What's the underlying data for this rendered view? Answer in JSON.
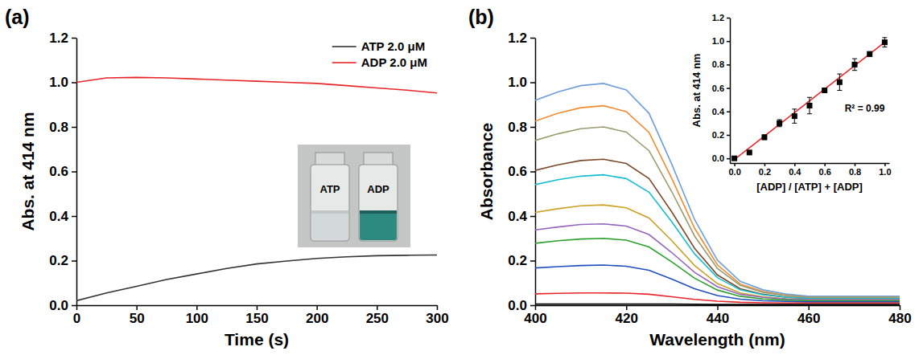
{
  "chart_data": [
    {
      "type": "line",
      "title": "(a)",
      "x_label": "Time (s)",
      "y_label": "Abs. at 414 nm",
      "x": [
        0,
        25,
        50,
        75,
        100,
        125,
        150,
        175,
        200,
        225,
        250,
        275,
        300
      ],
      "xlim": [
        0,
        300
      ],
      "xticks": [
        0,
        50,
        100,
        150,
        200,
        250,
        300
      ],
      "ylim": [
        0,
        1.2
      ],
      "yticks": [
        {
          "value": 0,
          "label": "0.0"
        },
        0.2,
        0.4,
        0.6,
        0.8,
        {
          "value": 1,
          "label": "1.0"
        },
        1.2
      ],
      "series": [
        {
          "name": "ATP 2.0 μM",
          "color": "#333333",
          "values": [
            0.02,
            0.055,
            0.085,
            0.115,
            0.14,
            0.165,
            0.185,
            0.198,
            0.21,
            0.217,
            0.222,
            0.224,
            0.225
          ]
        },
        {
          "name": "ADP 2.0 μM",
          "color": "#e8262a",
          "values": [
            1.0,
            1.02,
            1.022,
            1.02,
            1.015,
            1.01,
            1.005,
            1.0,
            0.995,
            0.985,
            0.975,
            0.965,
            0.952
          ]
        }
      ],
      "legend": "upper right",
      "annotations": [
        {
          "text": "ATP"
        },
        {
          "text": "ADP"
        }
      ]
    },
    {
      "type": "line",
      "title": "(b)",
      "x_label": "Wavelength (nm)",
      "y_label": "Absorbance",
      "x": [
        400,
        405,
        410,
        415,
        420,
        425,
        430,
        435,
        440,
        445,
        450,
        455,
        460,
        465,
        470,
        475,
        480
      ],
      "xlim": [
        400,
        480
      ],
      "xticks": [
        400,
        420,
        440,
        460,
        480
      ],
      "ylim": [
        0,
        1.2
      ],
      "yticks": [
        {
          "value": 0,
          "label": "0.0"
        },
        0.2,
        0.4,
        0.6,
        0.8,
        {
          "value": 1,
          "label": "1.0"
        },
        1.2
      ],
      "series": [
        {
          "color": "#6f9fd8",
          "values": [
            0.919,
            0.957,
            0.985,
            0.995,
            0.966,
            0.861,
            0.632,
            0.384,
            0.202,
            0.107,
            0.069,
            0.05,
            0.04,
            0.04,
            0.04,
            0.04,
            0.04
          ]
        },
        {
          "color": "#f28a2e",
          "values": [
            0.826,
            0.861,
            0.886,
            0.895,
            0.869,
            0.775,
            0.568,
            0.345,
            0.181,
            0.095,
            0.061,
            0.044,
            0.035,
            0.035,
            0.035,
            0.035,
            0.035
          ]
        },
        {
          "color": "#9b9b6e",
          "values": [
            0.739,
            0.769,
            0.792,
            0.8,
            0.777,
            0.693,
            0.509,
            0.31,
            0.165,
            0.089,
            0.058,
            0.043,
            0.035,
            0.035,
            0.035,
            0.035,
            0.035
          ]
        },
        {
          "color": "#7b4a2a",
          "values": [
            0.605,
            0.63,
            0.649,
            0.655,
            0.636,
            0.568,
            0.418,
            0.255,
            0.136,
            0.074,
            0.049,
            0.036,
            0.03,
            0.03,
            0.03,
            0.03,
            0.03
          ]
        },
        {
          "color": "#17becf",
          "values": [
            0.541,
            0.563,
            0.579,
            0.585,
            0.568,
            0.507,
            0.374,
            0.23,
            0.124,
            0.069,
            0.047,
            0.036,
            0.03,
            0.03,
            0.03,
            0.03,
            0.03
          ]
        },
        {
          "color": "#c9a227",
          "values": [
            0.416,
            0.433,
            0.446,
            0.45,
            0.437,
            0.391,
            0.289,
            0.178,
            0.097,
            0.055,
            0.038,
            0.029,
            0.025,
            0.025,
            0.025,
            0.025,
            0.025
          ]
        },
        {
          "color": "#9467bd",
          "values": [
            0.338,
            0.351,
            0.362,
            0.365,
            0.355,
            0.317,
            0.236,
            0.147,
            0.083,
            0.049,
            0.035,
            0.028,
            0.025,
            0.025,
            0.025,
            0.025,
            0.025
          ]
        },
        {
          "color": "#2ca02c",
          "values": [
            0.278,
            0.289,
            0.297,
            0.3,
            0.292,
            0.261,
            0.194,
            0.121,
            0.068,
            0.04,
            0.028,
            0.023,
            0.02,
            0.02,
            0.02,
            0.02,
            0.02
          ]
        },
        {
          "color": "#1f4fbf",
          "values": [
            0.167,
            0.173,
            0.178,
            0.18,
            0.175,
            0.157,
            0.117,
            0.074,
            0.043,
            0.027,
            0.02,
            0.017,
            0.015,
            0.015,
            0.015,
            0.015,
            0.015
          ]
        },
        {
          "color": "#e8262a",
          "values": [
            0.051,
            0.053,
            0.055,
            0.055,
            0.054,
            0.049,
            0.038,
            0.026,
            0.018,
            0.013,
            0.011,
            0.01,
            0.01,
            0.01,
            0.01,
            0.01,
            0.01
          ]
        },
        {
          "color": "#000000",
          "values": [
            0.005,
            0.005,
            0.005,
            0.005,
            0.005,
            0.005,
            0.005,
            0.004,
            0.003,
            0.003,
            0.003,
            0.003,
            0.003,
            0.003,
            0.003,
            0.003,
            0.003
          ]
        }
      ]
    },
    {
      "type": "scatter",
      "x_label": "[ADP] / [ATP] + [ADP]",
      "y_label": "Abs. at 414 nm",
      "x": [
        0,
        0.1,
        0.2,
        0.3,
        0.4,
        0.5,
        0.6,
        0.7,
        0.8,
        0.9,
        1.0
      ],
      "values": [
        0.0,
        0.05,
        0.18,
        0.3,
        0.36,
        0.45,
        0.58,
        0.65,
        0.8,
        0.89,
        0.99
      ],
      "errors": [
        0.01,
        0.01,
        0.02,
        0.03,
        0.06,
        0.07,
        0.01,
        0.07,
        0.05,
        0.02,
        0.04
      ],
      "color": "#000000",
      "marker": "square",
      "xlim": [
        -0.03,
        1.03
      ],
      "xticks": [
        {
          "value": 0,
          "label": "0.0"
        },
        0.2,
        0.4,
        0.6,
        0.8,
        {
          "value": 1,
          "label": "1.0"
        }
      ],
      "ylim": [
        -0.04,
        1.2
      ],
      "yticks": [
        {
          "value": 0,
          "label": "0.0"
        },
        0.2,
        0.4,
        0.6,
        0.8,
        {
          "value": 1,
          "label": "1.0"
        },
        1.2
      ],
      "fit": {
        "x": [
          0,
          1
        ],
        "values": [
          -0.01,
          0.99
        ],
        "color": "#e8262a"
      },
      "annotations": [
        {
          "text": "R² = 0.99"
        }
      ]
    }
  ]
}
